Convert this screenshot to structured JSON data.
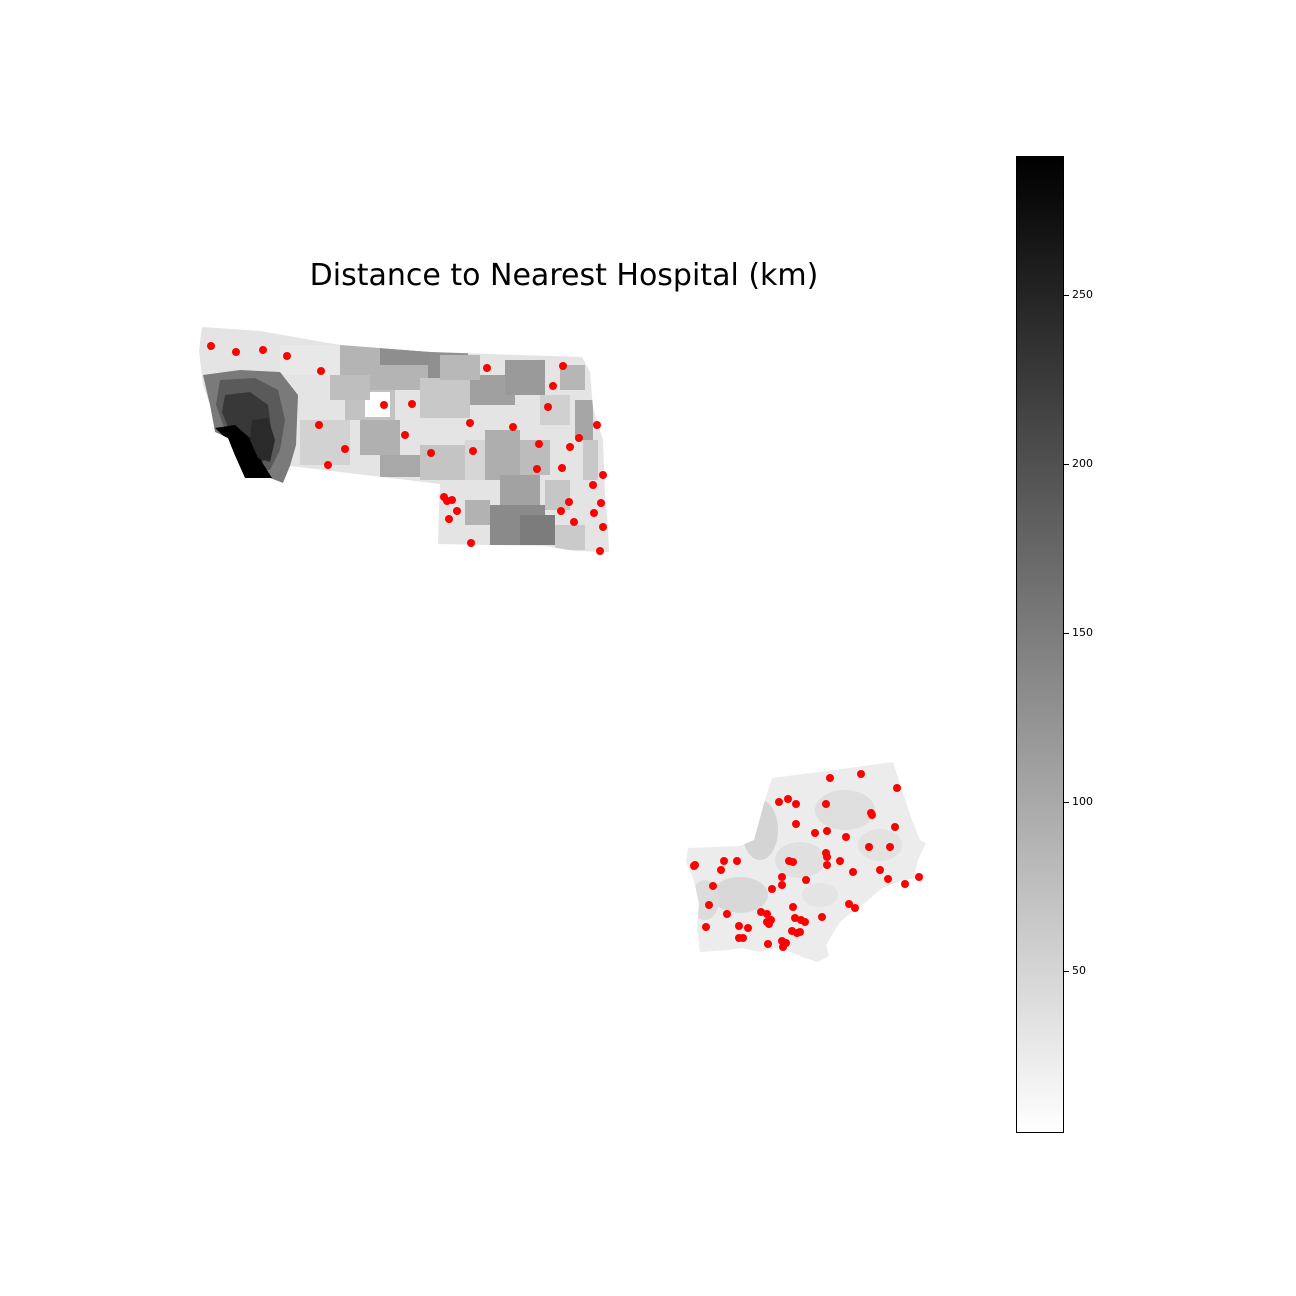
{
  "title": "Distance to Nearest Hospital (km)",
  "colorbar": {
    "min": 2,
    "max": 291,
    "ticks": [
      "50",
      "100",
      "150",
      "200",
      "250"
    ],
    "colormap": [
      "#ffffff",
      "#000000"
    ]
  },
  "marker_color": "#ff0000"
}
